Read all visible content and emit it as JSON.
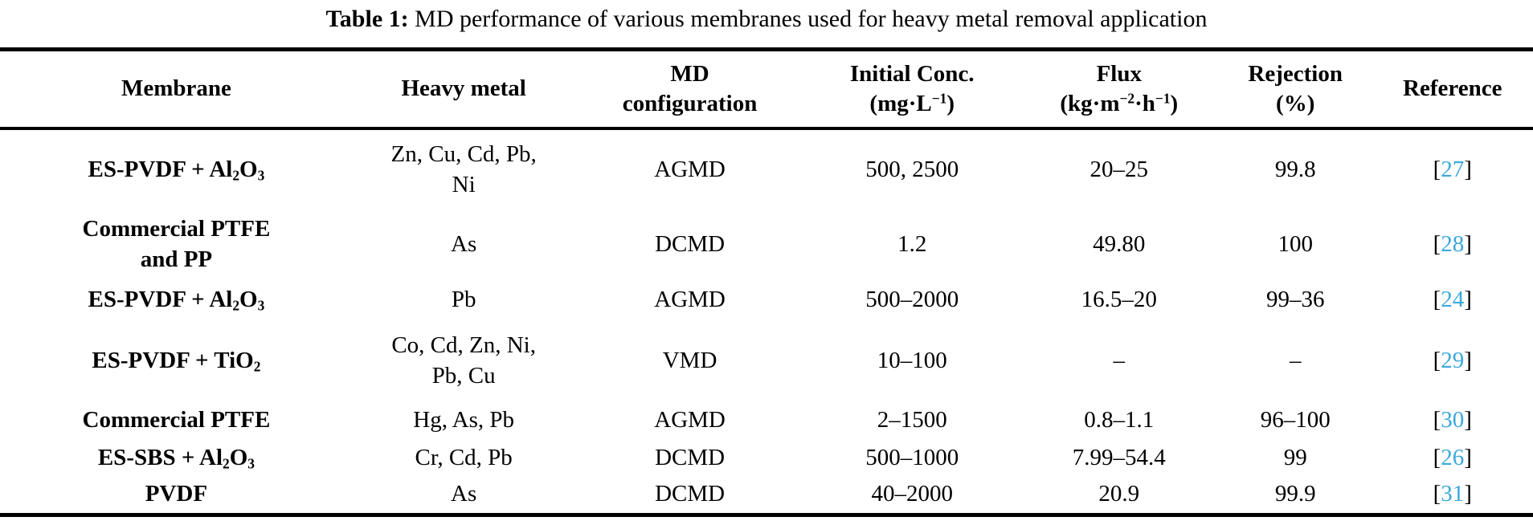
{
  "colors": {
    "reference_link": "#3aa8dc",
    "rule": "#000000",
    "text": "#000000",
    "background": "#ffffff"
  },
  "caption": {
    "label": "Table 1:",
    "text": " MD performance of various membranes used for heavy metal removal application"
  },
  "table": {
    "ref_bracket_open": "[",
    "ref_bracket_close": "]",
    "columns": {
      "membrane": "Membrane",
      "heavy_metal": "Heavy metal",
      "md_config": "MD<br>configuration",
      "initial_conc": "Initial Conc.<br>(mg·L<sup>−1</sup>)",
      "flux": "Flux<br>(kg·m<sup>−2</sup>·h<sup>−1</sup>)",
      "rejection": "Rejection<br>(%)",
      "reference": "Reference"
    },
    "rows": [
      {
        "membrane": "ES-PVDF + Al<sub>2</sub>O<sub>3</sub>",
        "heavy_metal": "Zn, Cu, Cd, Pb,<br>Ni",
        "md_config": "AGMD",
        "initial_conc": "500, 2500",
        "flux": "20–25",
        "rejection": "99.8",
        "ref": "27"
      },
      {
        "membrane": "Commercial PTFE<br>and PP",
        "heavy_metal": "As",
        "md_config": "DCMD",
        "initial_conc": "1.2",
        "flux": "49.80",
        "rejection": "100",
        "ref": "28"
      },
      {
        "membrane": "ES-PVDF + Al<sub>2</sub>O<sub>3</sub>",
        "heavy_metal": "Pb",
        "md_config": "AGMD",
        "initial_conc": "500–2000",
        "flux": "16.5–20",
        "rejection": "99–36",
        "ref": "24"
      },
      {
        "membrane": "ES-PVDF + TiO<sub>2</sub>",
        "heavy_metal": "Co, Cd, Zn, Ni,<br>Pb, Cu",
        "md_config": "VMD",
        "initial_conc": "10–100",
        "flux": "–",
        "rejection": "–",
        "ref": "29"
      },
      {
        "membrane": "Commercial PTFE",
        "heavy_metal": "Hg, As, Pb",
        "md_config": "AGMD",
        "initial_conc": "2–1500",
        "flux": "0.8–1.1",
        "rejection": "96–100",
        "ref": "30"
      },
      {
        "membrane": "ES-SBS + Al<sub>2</sub>O<sub>3</sub>",
        "heavy_metal": "Cr, Cd, Pb",
        "md_config": "DCMD",
        "initial_conc": "500–1000",
        "flux": "7.99–54.4",
        "rejection": "99",
        "ref": "26"
      },
      {
        "membrane": "PVDF",
        "heavy_metal": "As",
        "md_config": "DCMD",
        "initial_conc": "40–2000",
        "flux": "20.9",
        "rejection": "99.9",
        "ref": "31"
      }
    ]
  }
}
